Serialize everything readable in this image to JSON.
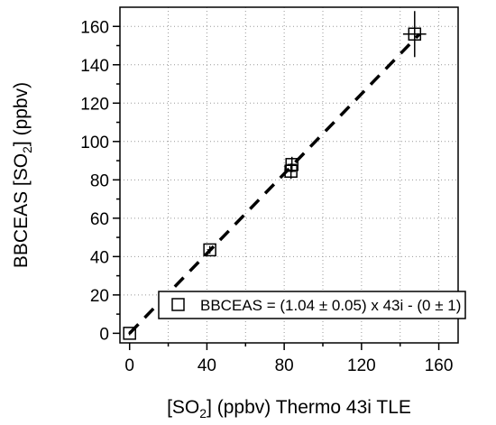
{
  "chart_data": {
    "type": "scatter",
    "title": "",
    "xlabel_parts": [
      "[SO",
      "2",
      "] (ppbv) Thermo 43i TLE"
    ],
    "ylabel_parts": [
      "BBCEAS [SO",
      "2",
      "] (ppbv)"
    ],
    "xlim": [
      -5,
      170
    ],
    "ylim": [
      -5,
      170
    ],
    "xticks": [
      0,
      40,
      80,
      120,
      160
    ],
    "yticks": [
      0,
      20,
      40,
      60,
      80,
      100,
      120,
      140,
      160
    ],
    "grid": true,
    "points": [
      {
        "x": 0,
        "y": 0,
        "xerr": 0.6,
        "yerr": 1
      },
      {
        "x": 41.5,
        "y": 43.5,
        "xerr": 1.2,
        "yerr": 2
      },
      {
        "x": 83.5,
        "y": 84.5,
        "xerr": 2.5,
        "yerr": 4
      },
      {
        "x": 84.0,
        "y": 88.0,
        "xerr": 2.5,
        "yerr": 4
      },
      {
        "x": 147.5,
        "y": 156.0,
        "xerr": 6,
        "yerr": 12
      }
    ],
    "fit": {
      "slope": 1.04,
      "intercept": 0,
      "x_range": [
        0,
        150
      ]
    },
    "legend": {
      "position": "lower-right",
      "label": "BBCEAS = (1.04 ± 0.05) x 43i - (0 ± 1)"
    }
  }
}
